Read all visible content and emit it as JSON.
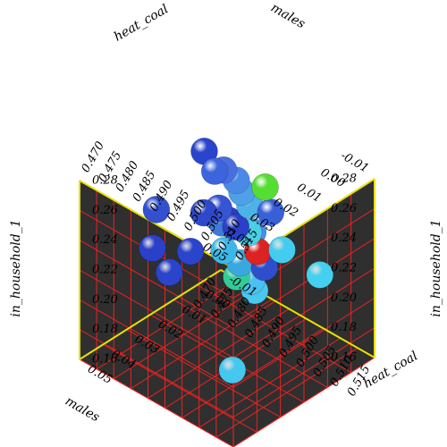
{
  "chart_data": {
    "type": "scatter3d",
    "axes": {
      "x": {
        "label": "males",
        "range": [
          0.47,
          0.515
        ],
        "ticks": [
          "0.470",
          "0.475",
          "0.480",
          "0.485",
          "0.490",
          "0.495",
          "0.500",
          "0.505",
          "0.510",
          "0.515"
        ]
      },
      "y": {
        "label": "heat_coal",
        "range": [
          -0.01,
          0.05
        ],
        "ticks": [
          "-0.01",
          "0.00",
          "0.01",
          "0.02",
          "0.03",
          "0.04",
          "0.05"
        ]
      },
      "z": {
        "label": "in_household_1",
        "range": [
          0.16,
          0.28
        ],
        "ticks": [
          "0.16",
          "0.18",
          "0.20",
          "0.22",
          "0.24",
          "0.26",
          "0.28"
        ]
      }
    },
    "top_labels": {
      "heat": "heat_coal",
      "males": "males"
    },
    "grid": true,
    "points": [
      {
        "x": 0.481,
        "y": 0.013,
        "z": 0.277,
        "color": "#2a44cc"
      },
      {
        "x": 0.482,
        "y": 0.01,
        "z": 0.262,
        "color": "#3c64dd"
      },
      {
        "x": 0.486,
        "y": 0.012,
        "z": 0.27,
        "color": "#4a6ee0"
      },
      {
        "x": 0.489,
        "y": 0.011,
        "z": 0.266,
        "color": "#4a8ae6"
      },
      {
        "x": 0.492,
        "y": 0.013,
        "z": 0.264,
        "color": "#4ea0e8"
      },
      {
        "x": 0.494,
        "y": 0.006,
        "z": 0.263,
        "color": "#55dd33"
      },
      {
        "x": 0.495,
        "y": 0.014,
        "z": 0.26,
        "color": "#4eb2ea"
      },
      {
        "x": 0.497,
        "y": 0.008,
        "z": 0.252,
        "color": "#3a60d8"
      },
      {
        "x": 0.488,
        "y": 0.017,
        "z": 0.252,
        "color": "#3654d4"
      },
      {
        "x": 0.485,
        "y": 0.019,
        "z": 0.247,
        "color": "#2e48cc"
      },
      {
        "x": 0.491,
        "y": 0.02,
        "z": 0.249,
        "color": "#3e7ad8"
      },
      {
        "x": 0.493,
        "y": 0.017,
        "z": 0.246,
        "color": "#2a40c8"
      },
      {
        "x": 0.498,
        "y": 0.017,
        "z": 0.249,
        "color": "#4a8de6"
      },
      {
        "x": 0.496,
        "y": 0.016,
        "z": 0.245,
        "color": "#4ad0e6"
      },
      {
        "x": 0.498,
        "y": 0.015,
        "z": 0.234,
        "color": "#dd2222"
      },
      {
        "x": 0.5,
        "y": 0.015,
        "z": 0.226,
        "color": "#2e4ecc"
      },
      {
        "x": 0.497,
        "y": 0.021,
        "z": 0.231,
        "color": "#3aa8e0"
      },
      {
        "x": 0.493,
        "y": 0.022,
        "z": 0.235,
        "color": "#3cb8e8"
      },
      {
        "x": 0.501,
        "y": 0.009,
        "z": 0.233,
        "color": "#44ccee"
      },
      {
        "x": 0.51,
        "y": 0.006,
        "z": 0.225,
        "color": "#44d0f0"
      },
      {
        "x": 0.488,
        "y": 0.029,
        "z": 0.235,
        "color": "#2a44cc"
      },
      {
        "x": 0.478,
        "y": 0.029,
        "z": 0.25,
        "color": "#3250d0"
      },
      {
        "x": 0.481,
        "y": 0.035,
        "z": 0.234,
        "color": "#2a40c8"
      },
      {
        "x": 0.488,
        "y": 0.038,
        "z": 0.23,
        "color": "#2a44cc"
      },
      {
        "x": 0.498,
        "y": 0.024,
        "z": 0.226,
        "color": "#33cc99"
      },
      {
        "x": 0.501,
        "y": 0.022,
        "z": 0.225,
        "color": "#4cc0ee"
      },
      {
        "x": 0.502,
        "y": 0.022,
        "z": 0.22,
        "color": "#48c8ee"
      },
      {
        "x": 0.495,
        "y": 0.023,
        "z": 0.259,
        "color": "#2a3cc4"
      },
      {
        "x": 0.503,
        "y": 0.033,
        "z": 0.179,
        "color": "#44c8ee"
      }
    ]
  }
}
